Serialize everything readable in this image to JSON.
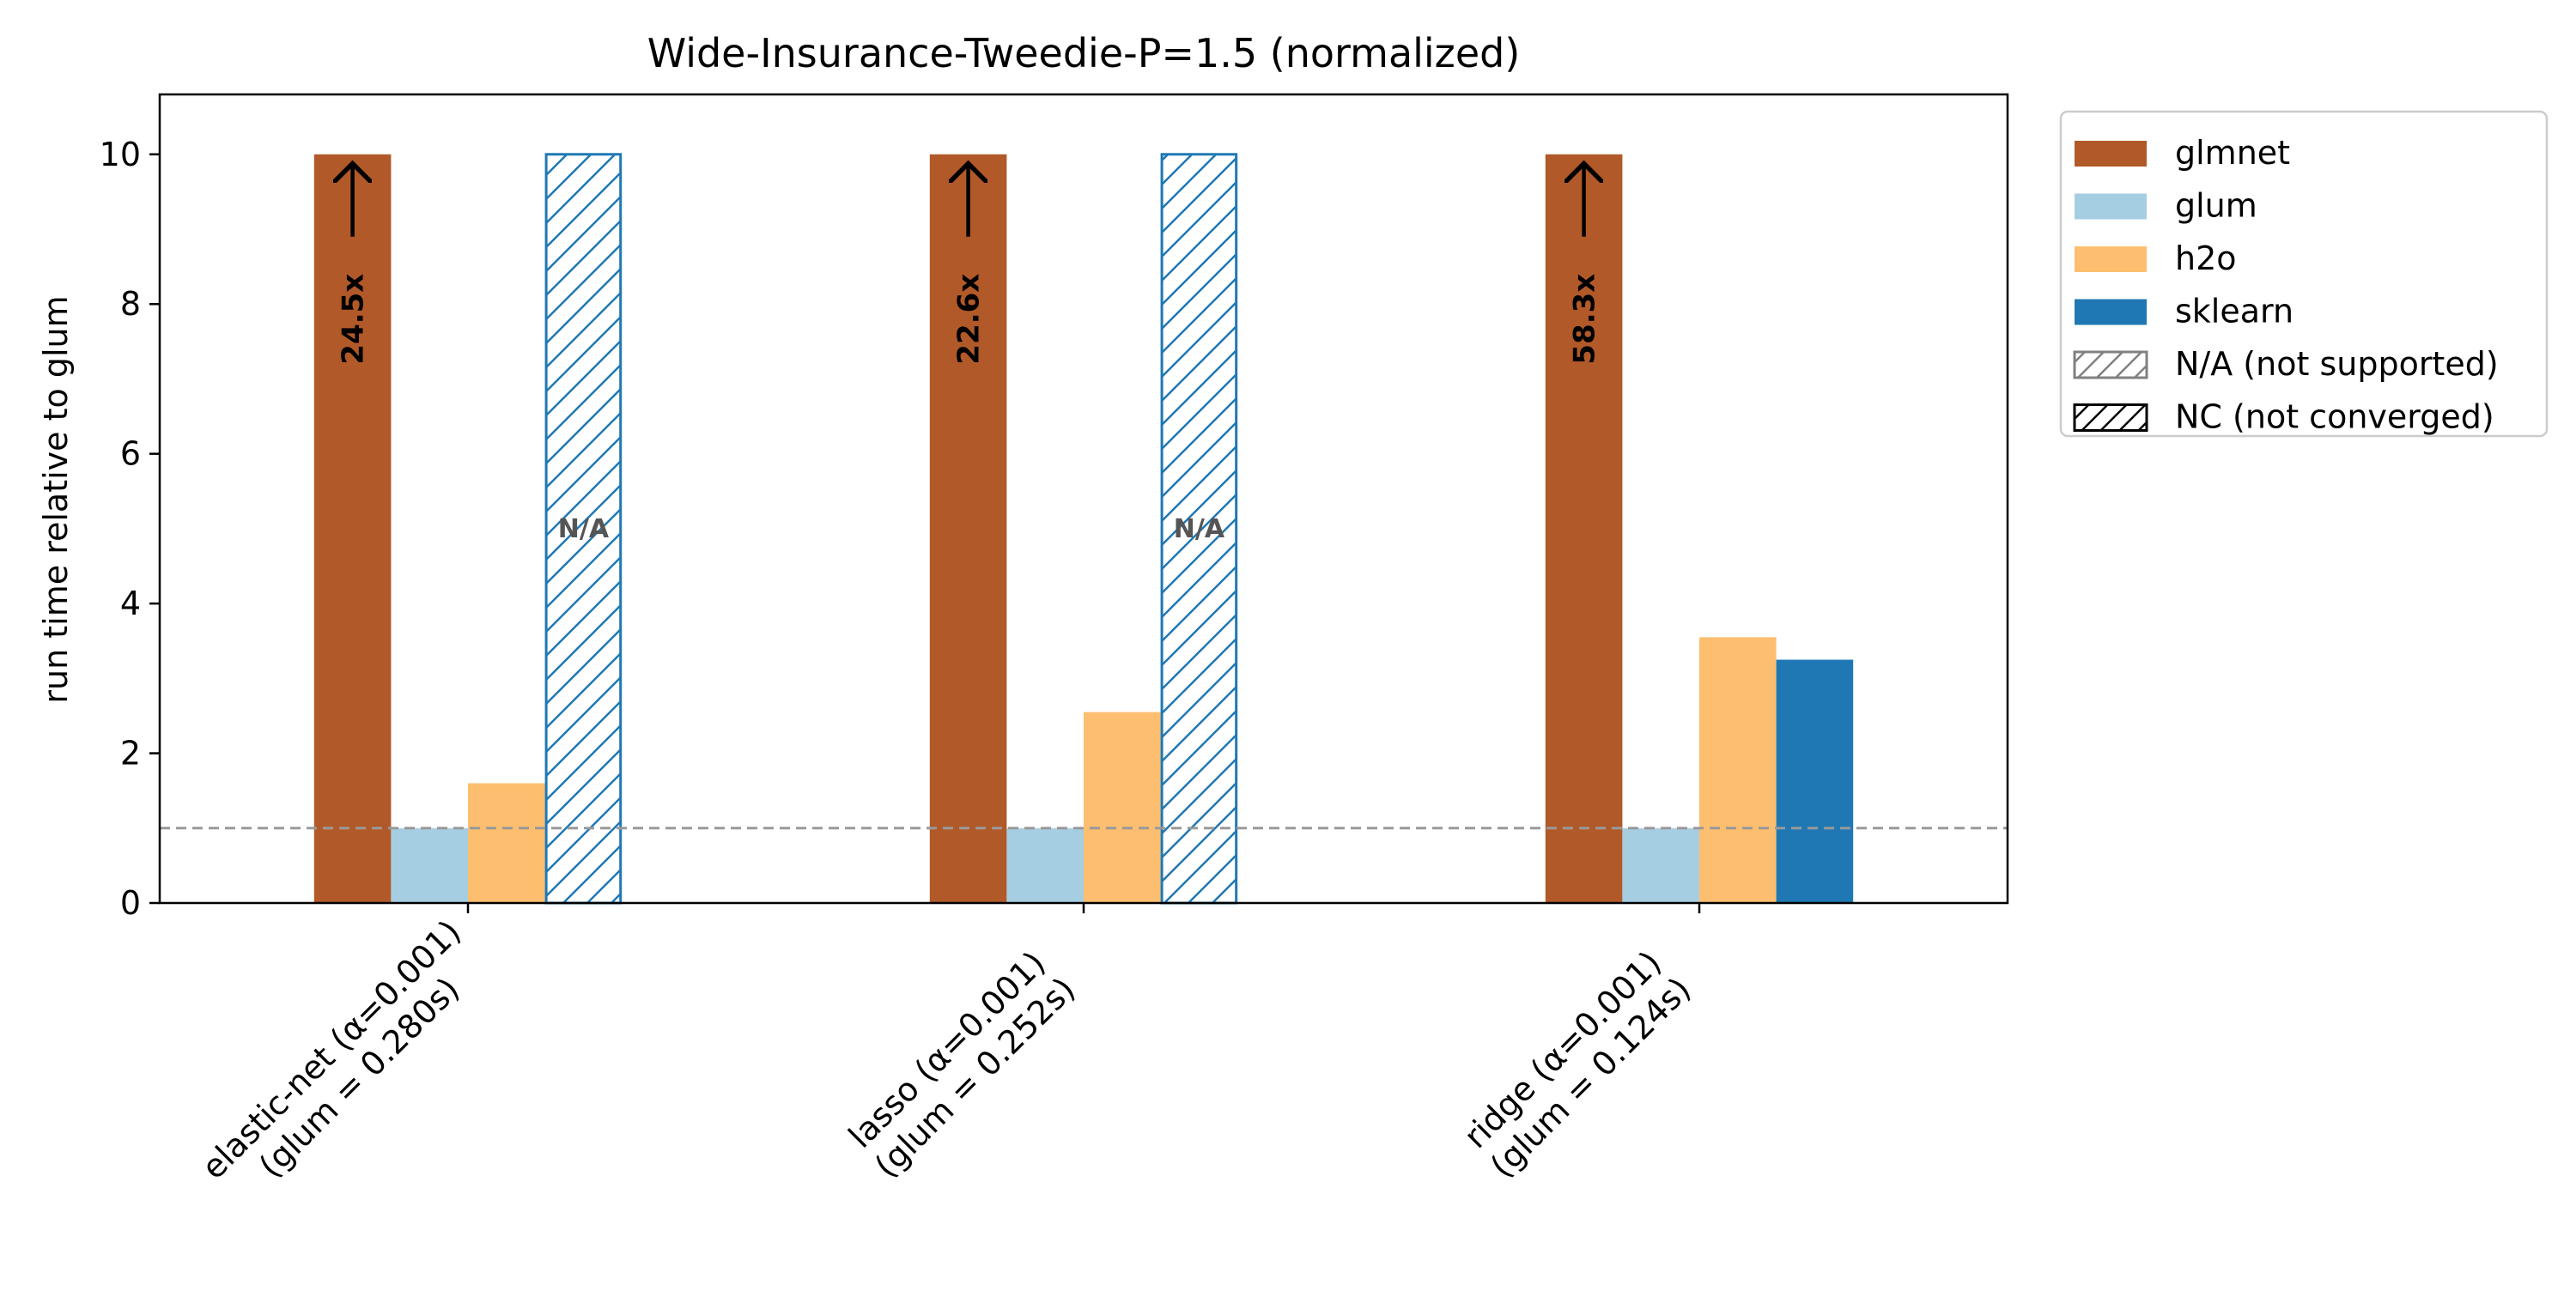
{
  "chart_data": {
    "type": "bar",
    "title": "Wide-Insurance-Tweedie-P=1.5 (normalized)",
    "xlabel": "",
    "ylabel": "run time relative to glum",
    "ylim": [
      0,
      10.8
    ],
    "yticks": [
      0,
      2,
      4,
      6,
      8,
      10
    ],
    "grid": false,
    "legend_position": "outside-right-top",
    "reference_line": {
      "y": 1,
      "style": "dashed",
      "color": "#999999"
    },
    "categories": [
      [
        "elastic-net (α=0.001)",
        "(glum = 0.280s)"
      ],
      [
        "lasso (α=0.001)",
        "(glum = 0.252s)"
      ],
      [
        "ridge (α=0.001)",
        "(glum = 0.124s)"
      ]
    ],
    "series": [
      {
        "name": "glmnet",
        "color": "#b15928",
        "values": [
          10,
          10,
          10
        ],
        "clipped_labels": [
          "24.5x",
          "22.6x",
          "58.3x"
        ]
      },
      {
        "name": "glum",
        "color": "#a6cee3",
        "values": [
          1,
          1,
          1
        ]
      },
      {
        "name": "h2o",
        "color": "#fdbf6f",
        "values": [
          1.6,
          2.55,
          3.55
        ]
      },
      {
        "name": "sklearn",
        "color": "#1f78b4",
        "values": [
          null,
          null,
          3.25
        ],
        "not_supported": [
          true,
          true,
          false
        ],
        "na_label": "N/A"
      }
    ],
    "legend": [
      {
        "label": "glmnet",
        "kind": "solid",
        "color": "#b15928"
      },
      {
        "label": "glum",
        "kind": "solid",
        "color": "#a6cee3"
      },
      {
        "label": "h2o",
        "kind": "solid",
        "color": "#fdbf6f"
      },
      {
        "label": "sklearn",
        "kind": "solid",
        "color": "#1f78b4"
      },
      {
        "label": "N/A (not supported)",
        "kind": "hatch",
        "color": "#808080"
      },
      {
        "label": "NC (not converged)",
        "kind": "hatch",
        "color": "#000000"
      }
    ]
  }
}
